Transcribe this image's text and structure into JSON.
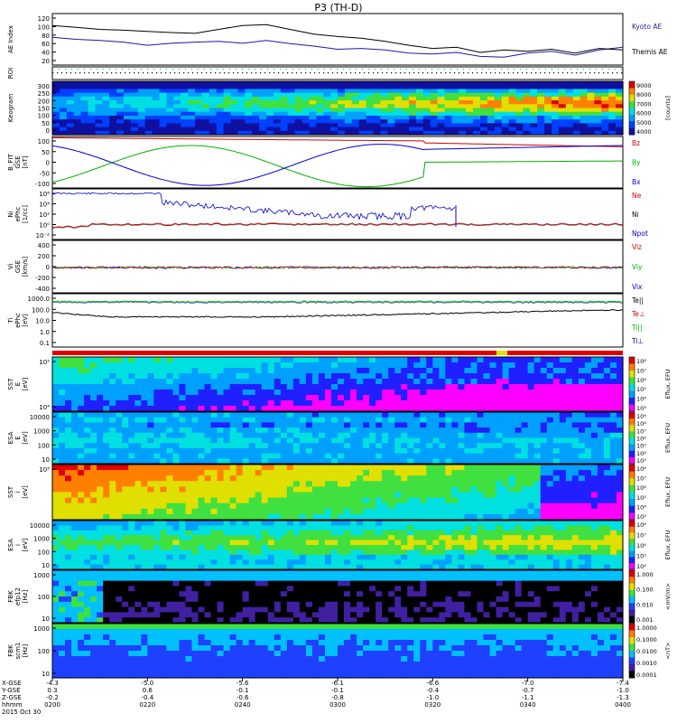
{
  "title": "P3 (TH-D)",
  "colors": {
    "kyoto": "#1a1aa6",
    "themis": "#000000",
    "red": "#cc0000",
    "green": "#00b000",
    "blue": "#0000cc",
    "black": "#000000",
    "cb_hot": [
      "#ff00ff",
      "#2020ff",
      "#00a0ff",
      "#00e0e0",
      "#40e040",
      "#e0e000",
      "#ff8000",
      "#e00000"
    ],
    "cb_efi": [
      "#000000",
      "#4020a0",
      "#2040ff",
      "#00c0ff",
      "#40e040",
      "#e0e000",
      "#ff8000",
      "#e00000"
    ]
  },
  "chart_data": [
    {
      "type": "line",
      "panel": "ae",
      "ylabel": "AE Index",
      "yticks": [
        "120",
        "100",
        "80",
        "60",
        "40",
        "20"
      ],
      "ylim": [
        0,
        130
      ],
      "x": [
        0,
        0.5,
        1,
        1.5,
        2,
        2.5,
        3,
        3.5,
        4,
        4.5,
        5,
        5.5,
        6,
        6.5,
        7,
        7.5,
        8,
        8.5,
        9,
        9.5,
        10,
        10.5,
        11,
        11.5,
        12
      ],
      "series": [
        {
          "name": "Kyoto AE",
          "color": "#1a1aa6",
          "values": [
            70,
            65,
            62,
            58,
            50,
            55,
            58,
            60,
            55,
            62,
            54,
            48,
            40,
            42,
            38,
            30,
            28,
            32,
            22,
            20,
            30,
            35,
            25,
            38,
            45
          ]
        },
        {
          "name": "Themis AE",
          "color": "#000000",
          "values": [
            100,
            95,
            90,
            88,
            85,
            82,
            80,
            90,
            100,
            102,
            90,
            78,
            72,
            68,
            60,
            50,
            42,
            45,
            32,
            38,
            35,
            40,
            30,
            42,
            38
          ]
        }
      ]
    },
    {
      "type": "heatmap",
      "panel": "roi",
      "ylabel": "ROI"
    },
    {
      "type": "heatmap",
      "panel": "keogram",
      "ylabel": "Keogram",
      "yticks": [
        "300",
        "250",
        "200",
        "150",
        "100",
        "50",
        "0"
      ],
      "colorbar": {
        "ticks": [
          "9000",
          "8000",
          "7000",
          "6000",
          "5000",
          "4000"
        ],
        "label": "[counts]"
      }
    },
    {
      "type": "line",
      "panel": "bfield",
      "ylabel": "B_FIT\nGSE\n[nT]",
      "yticks": [
        "100",
        "50",
        "0",
        "-50",
        "-100"
      ],
      "ylim": [
        -100,
        100
      ],
      "series": [
        {
          "name": "Bz",
          "color": "#cc0000"
        },
        {
          "name": "By",
          "color": "#00b000"
        },
        {
          "name": "Bx",
          "color": "#0000cc"
        }
      ]
    },
    {
      "type": "line",
      "panel": "density",
      "ylabel": "Ni\nePhc\n[1/cc]",
      "yticks": [
        "10⁶",
        "10⁴",
        "10²",
        "10⁰",
        "10⁻²"
      ],
      "series": [
        {
          "name": "Ne",
          "color": "#cc0000"
        },
        {
          "name": "Ni",
          "color": "#000000"
        },
        {
          "name": "Npot",
          "color": "#0000cc"
        }
      ]
    },
    {
      "type": "line",
      "panel": "velocity",
      "ylabel": "Vi\nGSE\n[km/s]",
      "yticks": [
        "400",
        "200",
        "0",
        "-200",
        "-400"
      ],
      "ylim": [
        -500,
        500
      ],
      "series": [
        {
          "name": "Viz",
          "color": "#cc0000"
        },
        {
          "name": "Viy",
          "color": "#00b000"
        },
        {
          "name": "Vix",
          "color": "#0000cc"
        }
      ]
    },
    {
      "type": "line",
      "panel": "temperature",
      "ylabel": "Ti\nePhc\n[eV]",
      "yticks": [
        "1000.0",
        "100.0",
        "10.0",
        "1.0",
        "0.1"
      ],
      "series": [
        {
          "name": "Te||",
          "color": "#000000"
        },
        {
          "name": "Te⊥",
          "color": "#cc0000"
        },
        {
          "name": "Ti||",
          "color": "#00b000"
        },
        {
          "name": "Ti⊥",
          "color": "#0000cc"
        }
      ]
    },
    {
      "type": "heatmap",
      "panel": "sst_e",
      "ylabel": "SST\nE\n[eV]",
      "yticks": [
        "10⁵",
        "10⁴"
      ],
      "colorbar": {
        "ticks": [
          "10⁸",
          "10⁷",
          "10⁶",
          "10⁵",
          "10⁴",
          "10³"
        ],
        "label": "Eflux, EFU"
      }
    },
    {
      "type": "heatmap",
      "panel": "esa_e",
      "ylabel": "ESA\nE\n[eV]",
      "yticks": [
        "10000",
        "1000",
        "100",
        "10"
      ],
      "colorbar": {
        "ticks": [
          "10⁹",
          "10⁸",
          "10⁷",
          "10⁶",
          "10⁵",
          "10⁴",
          "10³"
        ],
        "label": "Eflux, EFU"
      }
    },
    {
      "type": "heatmap",
      "panel": "sst_i",
      "ylabel": "SST\ni\n[eV]",
      "yticks": [
        "10⁵"
      ],
      "colorbar": {
        "ticks": [
          "10⁸",
          "10⁷",
          "10⁶",
          "10⁵",
          "10⁴",
          "10³"
        ],
        "label": "Eflux, EFU"
      }
    },
    {
      "type": "heatmap",
      "panel": "esa_i",
      "ylabel": "ESA\ni\n[eV]",
      "yticks": [
        "10000",
        "1000",
        "100",
        "10"
      ],
      "colorbar": {
        "ticks": [
          "10⁸",
          "10⁷",
          "10⁶",
          "10⁵",
          "10⁴"
        ],
        "label": "Eflux, EFU"
      }
    },
    {
      "type": "heatmap",
      "panel": "fbk_e",
      "ylabel": "FBK\nefp12\n[Hz]",
      "yticks": [
        "1000",
        "100",
        "10"
      ],
      "colorbar": {
        "ticks": [
          "1.000",
          "0.100",
          "0.010",
          "0.001"
        ],
        "label": "<mV/m>"
      }
    },
    {
      "type": "heatmap",
      "panel": "fbk_b",
      "ylabel": "FBK\nscm1\n[Hz]",
      "yticks": [
        "1000",
        "100",
        "10"
      ],
      "colorbar": {
        "ticks": [
          "1.0000",
          "0.1000",
          "0.0100",
          "0.0010",
          "0.0001"
        ],
        "label": "<nT>"
      }
    }
  ],
  "xaxis": {
    "rows": [
      {
        "label": "X-GSE",
        "values": [
          "-4.3",
          "-5.0",
          "-5.6",
          "-6.1",
          "-6.6",
          "-7.0",
          "-7.4"
        ]
      },
      {
        "label": "Y-GSE",
        "values": [
          "0.3",
          "0.6",
          "-0.1",
          "-0.1",
          "-0.4",
          "-0.7",
          "-1.0"
        ]
      },
      {
        "label": "Z-GSE",
        "values": [
          "-0.2",
          "-0.4",
          "-0.6",
          "-0.8",
          "-1.0",
          "-1.1",
          "-1.3"
        ]
      },
      {
        "label": "hhmm",
        "values": [
          "0200",
          "0220",
          "0240",
          "0300",
          "0320",
          "0340",
          "0400"
        ]
      }
    ],
    "date": "2015 Oct 30"
  }
}
